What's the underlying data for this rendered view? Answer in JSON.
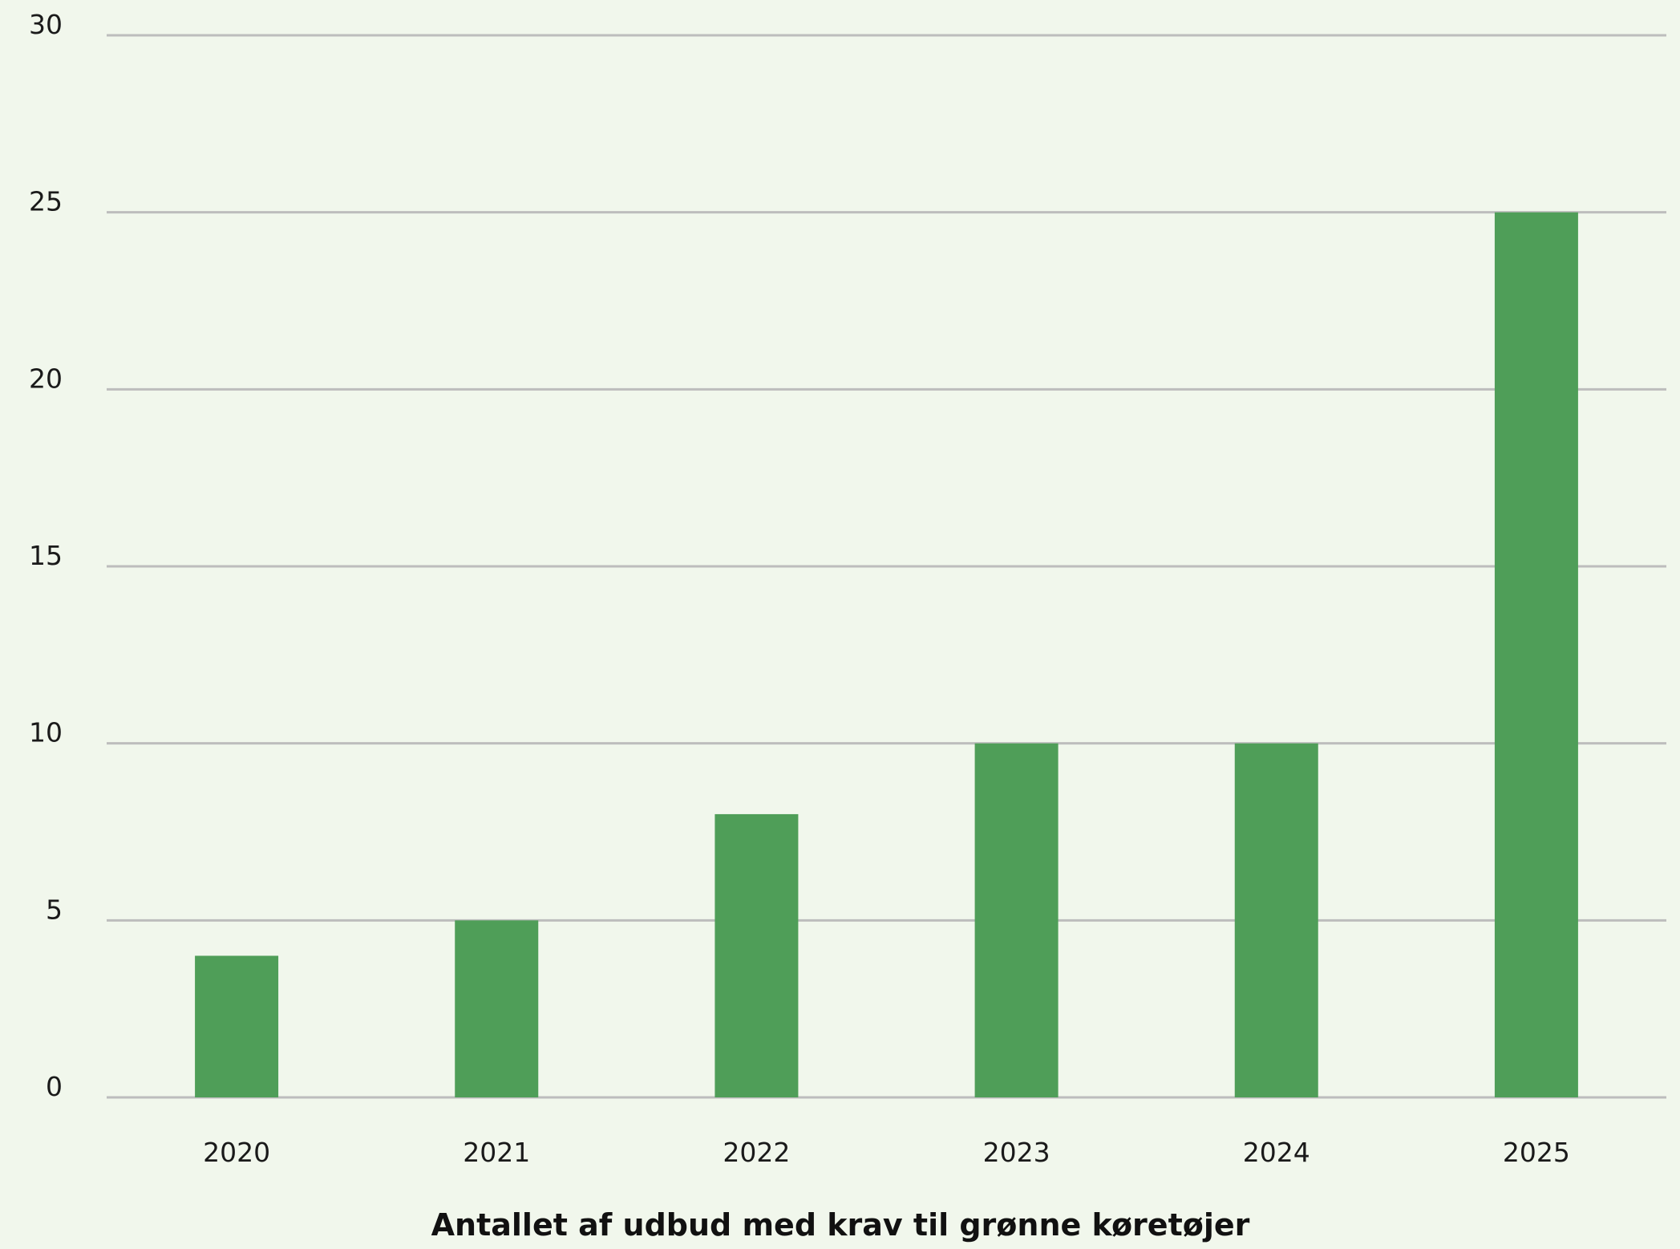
{
  "chart_data": {
    "type": "bar",
    "categories": [
      "2020",
      "2021",
      "2022",
      "2023",
      "2024",
      "2025"
    ],
    "values": [
      4,
      5,
      8,
      10,
      10,
      25
    ],
    "title": "",
    "xlabel": "Antallet af udbud med krav til grønne køretøjer",
    "ylabel": "",
    "ylim": [
      0,
      30
    ],
    "yticks": [
      "0",
      "5",
      "10",
      "15",
      "20",
      "25",
      "30"
    ],
    "grid": true,
    "legend": "none",
    "colors": {
      "bar": "#4f9e58",
      "grid": "#bdbdbd",
      "background": "#f1f7ec",
      "text": "#1a1a1a"
    }
  }
}
